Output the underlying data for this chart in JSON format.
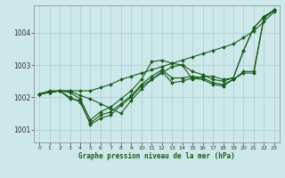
{
  "background_color": "#cce8ea",
  "grid_color": "#aacccc",
  "line_color": "#1a5c1a",
  "xlabel": "Graphe pression niveau de la mer (hPa)",
  "ylim": [
    1000.6,
    1004.85
  ],
  "xlim": [
    -0.5,
    23.5
  ],
  "yticks": [
    1001,
    1002,
    1003,
    1004
  ],
  "xticks": [
    0,
    1,
    2,
    3,
    4,
    5,
    6,
    7,
    8,
    9,
    10,
    11,
    12,
    13,
    14,
    15,
    16,
    17,
    18,
    19,
    20,
    21,
    22,
    23
  ],
  "series": [
    [
      1002.1,
      1002.15,
      1002.2,
      1002.2,
      1002.05,
      1001.95,
      1001.8,
      1001.65,
      1001.5,
      1001.9,
      1002.25,
      1002.55,
      1002.75,
      1002.95,
      1003.0,
      1002.55,
      1002.65,
      1002.65,
      1002.55,
      1002.6,
      1003.45,
      1004.15,
      1004.5,
      1004.7
    ],
    [
      1002.1,
      1002.15,
      1002.2,
      1002.15,
      1001.95,
      1001.3,
      1001.55,
      1001.7,
      1001.95,
      1002.2,
      1002.55,
      1003.1,
      1003.15,
      1003.05,
      1003.0,
      1002.8,
      1002.7,
      1002.55,
      1002.5,
      1002.6,
      1003.45,
      1004.15,
      1004.5,
      1004.7
    ],
    [
      1002.1,
      1002.15,
      1002.2,
      1002.0,
      1001.85,
      1001.2,
      1001.45,
      1001.55,
      1001.8,
      1002.05,
      1002.4,
      1002.65,
      1002.85,
      1002.6,
      1002.6,
      1002.65,
      1002.6,
      1002.45,
      1002.4,
      1002.55,
      1002.8,
      1002.8,
      1004.5,
      1004.7
    ],
    [
      1002.1,
      1002.15,
      1002.2,
      1001.95,
      1001.9,
      1001.15,
      1001.35,
      1001.45,
      1001.75,
      1002.0,
      1002.35,
      1002.55,
      1002.8,
      1002.45,
      1002.5,
      1002.6,
      1002.55,
      1002.4,
      1002.35,
      1002.55,
      1002.75,
      1002.75,
      1004.45,
      1004.7
    ],
    [
      1002.1,
      1002.2,
      1002.2,
      1002.2,
      1002.2,
      1002.2,
      1002.3,
      1002.4,
      1002.55,
      1002.65,
      1002.75,
      1002.85,
      1002.95,
      1003.05,
      1003.15,
      1003.25,
      1003.35,
      1003.45,
      1003.55,
      1003.65,
      1003.85,
      1004.05,
      1004.35,
      1004.65
    ]
  ]
}
